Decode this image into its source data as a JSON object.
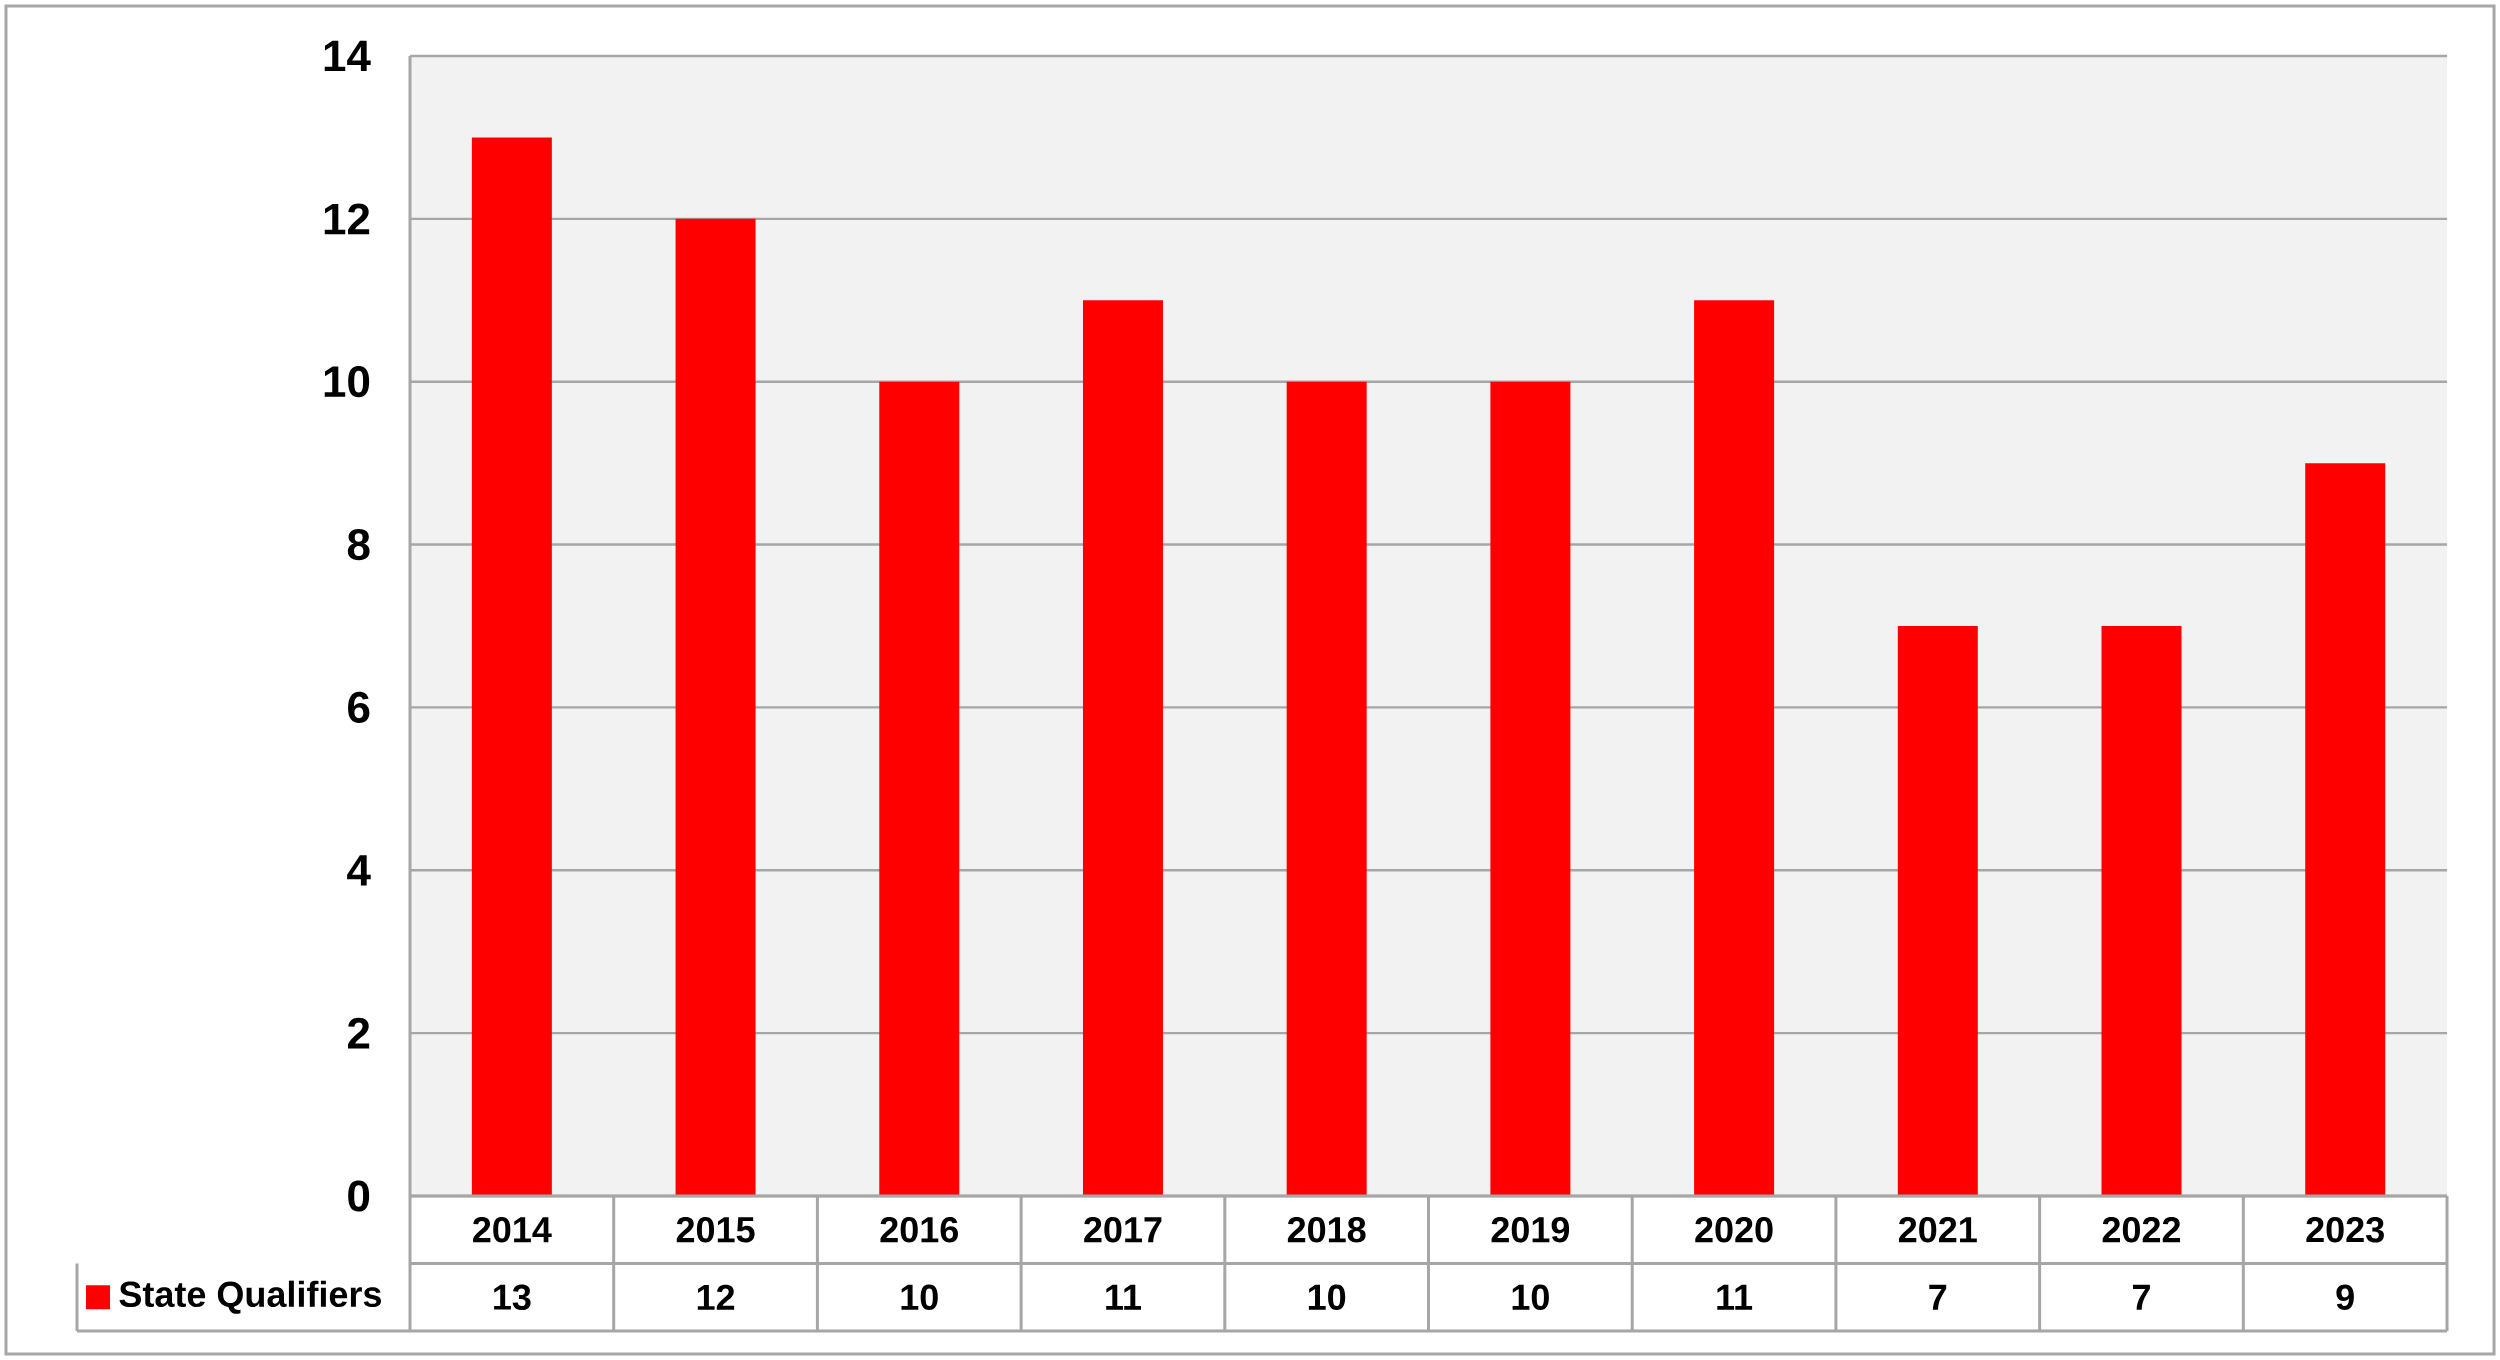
{
  "chart_data": {
    "type": "bar",
    "categories": [
      "2014",
      "2015",
      "2016",
      "2017",
      "2018",
      "2019",
      "2020",
      "2021",
      "2022",
      "2023"
    ],
    "series": [
      {
        "name": "State Qualifiers",
        "color": "#ff0000",
        "values": [
          13,
          12,
          10,
          11,
          10,
          10,
          11,
          7,
          7,
          9
        ]
      }
    ],
    "ylim": [
      0,
      14
    ],
    "yticks": [
      0,
      2,
      4,
      6,
      8,
      10,
      12,
      14
    ],
    "grid": "y",
    "legend": "bottom left",
    "data_labels": true
  }
}
